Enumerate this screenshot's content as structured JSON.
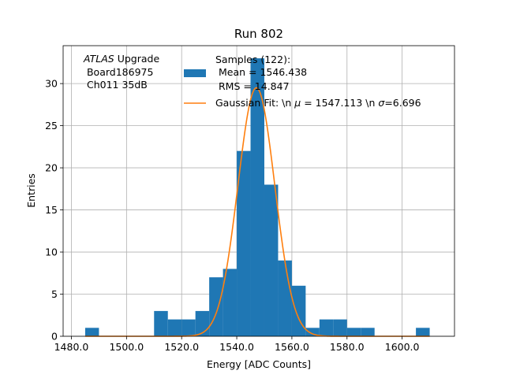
{
  "chart_data": {
    "type": "bar",
    "title": "Run 802",
    "xlabel": "Energy [ADC Counts]",
    "ylabel": "Entries",
    "xlim": [
      1477,
      1619
    ],
    "ylim": [
      0,
      34.5
    ],
    "x_ticks": [
      1480,
      1500,
      1520,
      1540,
      1560,
      1580,
      1600
    ],
    "x_tick_labels": [
      "1480.0",
      "1500.0",
      "1520.0",
      "1540.0",
      "1560.0",
      "1580.0",
      "1600.0"
    ],
    "y_ticks": [
      0,
      5,
      10,
      15,
      20,
      25,
      30
    ],
    "y_tick_labels": [
      "0",
      "5",
      "10",
      "15",
      "20",
      "25",
      "30"
    ],
    "grid": true,
    "histogram": {
      "name": "Samples (122):",
      "color": "#1f77b4",
      "bin_edges": [
        1485,
        1490,
        1495,
        1500,
        1505,
        1510,
        1515,
        1520,
        1525,
        1530,
        1535,
        1540,
        1545,
        1550,
        1555,
        1560,
        1565,
        1570,
        1575,
        1580,
        1585,
        1590,
        1595,
        1600,
        1605,
        1610
      ],
      "counts": [
        1,
        0,
        0,
        0,
        0,
        3,
        2,
        2,
        3,
        7,
        8,
        22,
        33,
        18,
        9,
        6,
        1,
        2,
        2,
        1,
        1,
        0,
        0,
        0,
        1
      ]
    },
    "fit": {
      "name": "Gaussian Fit: \\n $\\mu$ = 1547.113 \\n $\\sigma$=6.696",
      "color": "#ff7f0e",
      "mu": 1547.113,
      "sigma": 6.696,
      "amplitude": 29.5,
      "x_range": [
        1485,
        1610
      ]
    },
    "legend": {
      "placement": "top-right",
      "entries": [
        {
          "kind": "patch",
          "lines": [
            "Samples (122):",
            " Mean = 1546.438",
            " RMS = 14.847"
          ]
        },
        {
          "kind": "line",
          "parts": [
            "Gaussian Fit: \\n ",
            "μ",
            " = 1547.113 \\n ",
            "σ",
            "=6.696"
          ]
        }
      ]
    },
    "annotation": {
      "italic": "ATLAS",
      "rest": " Upgrade",
      "lines": [
        " Board186975",
        " Ch011 35dB"
      ]
    }
  }
}
